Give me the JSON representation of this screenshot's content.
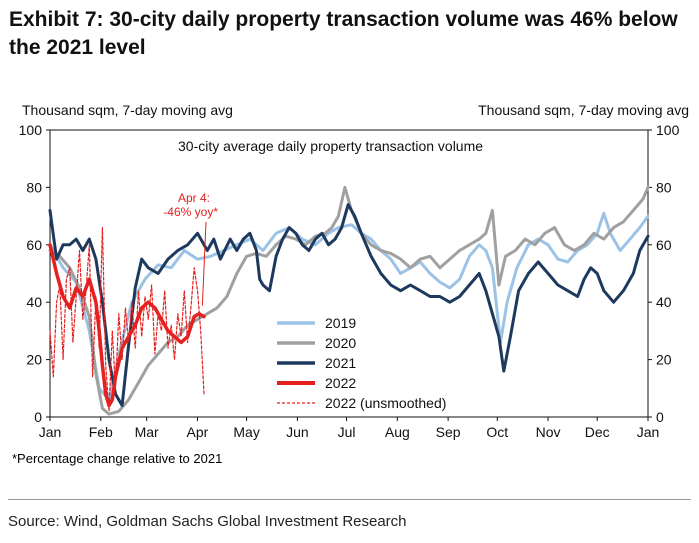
{
  "title": "Exhibit 7: 30-city daily property transaction volume was 46% below the 2021 level",
  "left_axis_unit": "Thousand sqm, 7-day moving avg",
  "right_axis_unit": "Thousand sqm, 7-day moving avg",
  "footnote": "*Percentage change relative to 2021",
  "source": "Source: Wind, Goldman Sachs Global Investment Research",
  "chart_data": {
    "type": "line",
    "title": "30-city average daily property transaction volume",
    "xlabel": "",
    "ylabel": "Thousand sqm, 7-day moving avg",
    "ylim": [
      0,
      100
    ],
    "yticks": [
      0,
      20,
      40,
      60,
      80,
      100
    ],
    "xlim": [
      0,
      365
    ],
    "xticks": [
      {
        "label": "Jan",
        "day": 0
      },
      {
        "label": "Feb",
        "day": 31
      },
      {
        "label": "Mar",
        "day": 59
      },
      {
        "label": "Apr",
        "day": 90
      },
      {
        "label": "May",
        "day": 120
      },
      {
        "label": "Jun",
        "day": 151
      },
      {
        "label": "Jul",
        "day": 181
      },
      {
        "label": "Aug",
        "day": 212
      },
      {
        "label": "Sep",
        "day": 243
      },
      {
        "label": "Oct",
        "day": 273
      },
      {
        "label": "Nov",
        "day": 304
      },
      {
        "label": "Dec",
        "day": 334
      },
      {
        "label": "Jan",
        "day": 365
      }
    ],
    "annotation": {
      "line1": "Apr 4:",
      "line2": "-46% yoy*",
      "day": 93,
      "value": 36
    },
    "series": [
      {
        "name": "2019",
        "color": "#9cc3e6",
        "width": 3,
        "dash": "",
        "points": [
          [
            0,
            60
          ],
          [
            8,
            52
          ],
          [
            16,
            47
          ],
          [
            24,
            30
          ],
          [
            30,
            10
          ],
          [
            36,
            6
          ],
          [
            42,
            22
          ],
          [
            50,
            40
          ],
          [
            58,
            48
          ],
          [
            66,
            53
          ],
          [
            74,
            52
          ],
          [
            82,
            58
          ],
          [
            90,
            55
          ],
          [
            98,
            56
          ],
          [
            106,
            58
          ],
          [
            114,
            60
          ],
          [
            122,
            62
          ],
          [
            130,
            58
          ],
          [
            138,
            64
          ],
          [
            146,
            66
          ],
          [
            154,
            62
          ],
          [
            162,
            60
          ],
          [
            170,
            64
          ],
          [
            176,
            66
          ],
          [
            184,
            67
          ],
          [
            190,
            64
          ],
          [
            196,
            62
          ],
          [
            202,
            58
          ],
          [
            208,
            55
          ],
          [
            214,
            50
          ],
          [
            220,
            52
          ],
          [
            226,
            54
          ],
          [
            232,
            50
          ],
          [
            238,
            47
          ],
          [
            244,
            45
          ],
          [
            250,
            48
          ],
          [
            256,
            56
          ],
          [
            262,
            60
          ],
          [
            266,
            58
          ],
          [
            270,
            52
          ],
          [
            275,
            26
          ],
          [
            279,
            40
          ],
          [
            285,
            52
          ],
          [
            292,
            60
          ],
          [
            298,
            62
          ],
          [
            304,
            60
          ],
          [
            310,
            55
          ],
          [
            316,
            54
          ],
          [
            322,
            58
          ],
          [
            328,
            60
          ],
          [
            334,
            64
          ],
          [
            338,
            71
          ],
          [
            342,
            64
          ],
          [
            348,
            58
          ],
          [
            354,
            62
          ],
          [
            360,
            66
          ],
          [
            365,
            70
          ]
        ]
      },
      {
        "name": "2020",
        "color": "#a0a0a0",
        "width": 3,
        "dash": "",
        "points": [
          [
            0,
            58
          ],
          [
            6,
            56
          ],
          [
            12,
            52
          ],
          [
            18,
            45
          ],
          [
            24,
            35
          ],
          [
            28,
            15
          ],
          [
            32,
            3
          ],
          [
            36,
            1
          ],
          [
            42,
            2
          ],
          [
            48,
            6
          ],
          [
            54,
            12
          ],
          [
            60,
            18
          ],
          [
            66,
            22
          ],
          [
            72,
            26
          ],
          [
            78,
            28
          ],
          [
            84,
            32
          ],
          [
            90,
            34
          ],
          [
            96,
            36
          ],
          [
            102,
            38
          ],
          [
            108,
            42
          ],
          [
            114,
            50
          ],
          [
            120,
            56
          ],
          [
            126,
            57
          ],
          [
            132,
            56
          ],
          [
            138,
            60
          ],
          [
            144,
            63
          ],
          [
            150,
            62
          ],
          [
            156,
            60
          ],
          [
            162,
            63
          ],
          [
            168,
            64
          ],
          [
            172,
            66
          ],
          [
            176,
            70
          ],
          [
            180,
            80
          ],
          [
            184,
            72
          ],
          [
            190,
            64
          ],
          [
            196,
            60
          ],
          [
            202,
            58
          ],
          [
            208,
            57
          ],
          [
            214,
            55
          ],
          [
            220,
            52
          ],
          [
            226,
            55
          ],
          [
            232,
            56
          ],
          [
            238,
            52
          ],
          [
            244,
            55
          ],
          [
            250,
            58
          ],
          [
            256,
            60
          ],
          [
            262,
            62
          ],
          [
            266,
            64
          ],
          [
            270,
            72
          ],
          [
            274,
            46
          ],
          [
            278,
            56
          ],
          [
            284,
            58
          ],
          [
            290,
            62
          ],
          [
            296,
            60
          ],
          [
            302,
            64
          ],
          [
            308,
            66
          ],
          [
            314,
            60
          ],
          [
            320,
            58
          ],
          [
            326,
            60
          ],
          [
            332,
            64
          ],
          [
            338,
            62
          ],
          [
            344,
            66
          ],
          [
            350,
            68
          ],
          [
            356,
            72
          ],
          [
            362,
            76
          ],
          [
            365,
            80
          ]
        ]
      },
      {
        "name": "2021",
        "color": "#1d3a5e",
        "width": 3,
        "dash": "",
        "points": [
          [
            0,
            72
          ],
          [
            4,
            55
          ],
          [
            8,
            60
          ],
          [
            12,
            60
          ],
          [
            16,
            62
          ],
          [
            20,
            58
          ],
          [
            24,
            62
          ],
          [
            28,
            55
          ],
          [
            32,
            40
          ],
          [
            36,
            20
          ],
          [
            40,
            8
          ],
          [
            44,
            4
          ],
          [
            48,
            25
          ],
          [
            52,
            45
          ],
          [
            56,
            55
          ],
          [
            60,
            52
          ],
          [
            66,
            50
          ],
          [
            72,
            55
          ],
          [
            78,
            58
          ],
          [
            84,
            60
          ],
          [
            90,
            64
          ],
          [
            96,
            58
          ],
          [
            100,
            62
          ],
          [
            104,
            55
          ],
          [
            110,
            62
          ],
          [
            114,
            58
          ],
          [
            118,
            62
          ],
          [
            122,
            64
          ],
          [
            126,
            58
          ],
          [
            128,
            48
          ],
          [
            130,
            46
          ],
          [
            134,
            44
          ],
          [
            138,
            56
          ],
          [
            142,
            62
          ],
          [
            146,
            66
          ],
          [
            150,
            64
          ],
          [
            154,
            60
          ],
          [
            158,
            58
          ],
          [
            162,
            62
          ],
          [
            166,
            64
          ],
          [
            170,
            60
          ],
          [
            174,
            62
          ],
          [
            178,
            66
          ],
          [
            182,
            74
          ],
          [
            186,
            70
          ],
          [
            190,
            64
          ],
          [
            196,
            56
          ],
          [
            202,
            50
          ],
          [
            208,
            46
          ],
          [
            214,
            44
          ],
          [
            220,
            46
          ],
          [
            226,
            44
          ],
          [
            232,
            42
          ],
          [
            238,
            42
          ],
          [
            244,
            40
          ],
          [
            250,
            42
          ],
          [
            256,
            46
          ],
          [
            262,
            50
          ],
          [
            266,
            44
          ],
          [
            270,
            36
          ],
          [
            274,
            28
          ],
          [
            277,
            16
          ],
          [
            281,
            28
          ],
          [
            286,
            44
          ],
          [
            292,
            50
          ],
          [
            298,
            54
          ],
          [
            304,
            50
          ],
          [
            310,
            46
          ],
          [
            316,
            44
          ],
          [
            322,
            42
          ],
          [
            326,
            48
          ],
          [
            330,
            52
          ],
          [
            334,
            50
          ],
          [
            338,
            44
          ],
          [
            344,
            40
          ],
          [
            350,
            44
          ],
          [
            356,
            50
          ],
          [
            360,
            58
          ],
          [
            365,
            63
          ]
        ]
      },
      {
        "name": "2022",
        "color": "#e5201f",
        "width": 3.5,
        "dash": "",
        "points": [
          [
            0,
            60
          ],
          [
            4,
            50
          ],
          [
            8,
            42
          ],
          [
            12,
            38
          ],
          [
            16,
            45
          ],
          [
            20,
            42
          ],
          [
            24,
            48
          ],
          [
            28,
            40
          ],
          [
            30,
            30
          ],
          [
            32,
            18
          ],
          [
            34,
            8
          ],
          [
            36,
            4
          ],
          [
            38,
            6
          ],
          [
            40,
            14
          ],
          [
            44,
            24
          ],
          [
            48,
            28
          ],
          [
            52,
            32
          ],
          [
            56,
            38
          ],
          [
            60,
            40
          ],
          [
            64,
            38
          ],
          [
            68,
            34
          ],
          [
            72,
            30
          ],
          [
            76,
            28
          ],
          [
            80,
            26
          ],
          [
            84,
            28
          ],
          [
            88,
            35
          ],
          [
            91,
            36
          ],
          [
            94,
            35
          ]
        ]
      },
      {
        "name": "2022 (unsmoothed)",
        "color": "#e5201f",
        "width": 1.2,
        "dash": "3,2",
        "points": [
          [
            0,
            30
          ],
          [
            2,
            14
          ],
          [
            4,
            40
          ],
          [
            6,
            46
          ],
          [
            8,
            20
          ],
          [
            10,
            48
          ],
          [
            12,
            52
          ],
          [
            14,
            26
          ],
          [
            16,
            42
          ],
          [
            18,
            58
          ],
          [
            20,
            34
          ],
          [
            22,
            44
          ],
          [
            24,
            60
          ],
          [
            26,
            14
          ],
          [
            28,
            42
          ],
          [
            30,
            24
          ],
          [
            32,
            66
          ],
          [
            34,
            18
          ],
          [
            36,
            2
          ],
          [
            38,
            30
          ],
          [
            40,
            10
          ],
          [
            42,
            36
          ],
          [
            44,
            20
          ],
          [
            46,
            38
          ],
          [
            48,
            26
          ],
          [
            50,
            40
          ],
          [
            52,
            24
          ],
          [
            54,
            44
          ],
          [
            56,
            28
          ],
          [
            58,
            42
          ],
          [
            60,
            34
          ],
          [
            62,
            46
          ],
          [
            64,
            22
          ],
          [
            66,
            36
          ],
          [
            68,
            30
          ],
          [
            70,
            44
          ],
          [
            72,
            24
          ],
          [
            74,
            32
          ],
          [
            76,
            20
          ],
          [
            78,
            36
          ],
          [
            80,
            28
          ],
          [
            82,
            44
          ],
          [
            84,
            26
          ],
          [
            86,
            38
          ],
          [
            88,
            52
          ],
          [
            90,
            44
          ],
          [
            92,
            30
          ],
          [
            94,
            8
          ]
        ]
      }
    ]
  }
}
